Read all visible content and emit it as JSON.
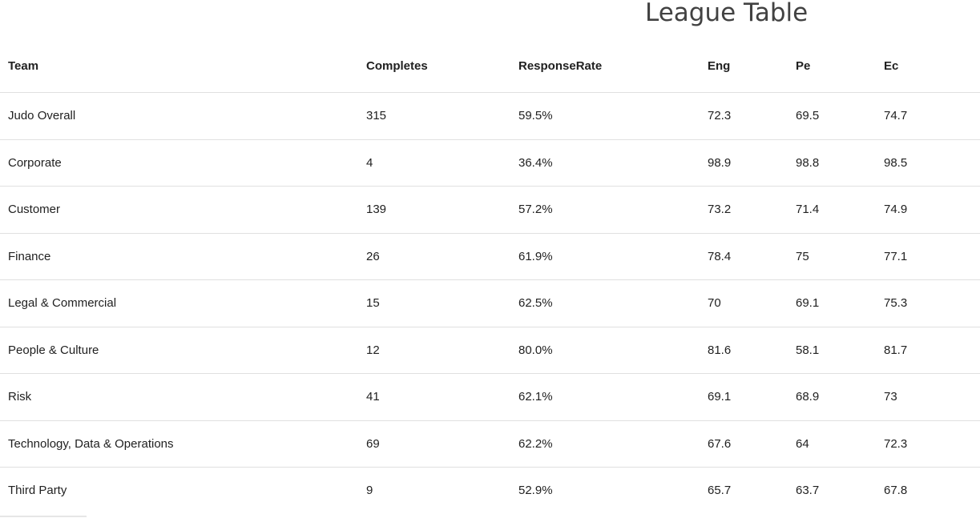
{
  "page": {
    "title": "League Table"
  },
  "table": {
    "headers": [
      "Team",
      "Completes",
      "ResponseRate",
      "Eng",
      "Pe",
      "Ec"
    ],
    "rows": [
      [
        "Judo Overall",
        "315",
        "59.5%",
        "72.3",
        "69.5",
        "74.7"
      ],
      [
        "Corporate",
        "4",
        "36.4%",
        "98.9",
        "98.8",
        "98.5"
      ],
      [
        "Customer",
        "139",
        "57.2%",
        "73.2",
        "71.4",
        "74.9"
      ],
      [
        "Finance",
        "26",
        "61.9%",
        "78.4",
        "75",
        "77.1"
      ],
      [
        "Legal & Commercial",
        "15",
        "62.5%",
        "70",
        "69.1",
        "75.3"
      ],
      [
        "People & Culture",
        "12",
        "80.0%",
        "81.6",
        "58.1",
        "81.7"
      ],
      [
        "Risk",
        "41",
        "62.1%",
        "69.1",
        "68.9",
        "73"
      ],
      [
        "Technology, Data & Operations",
        "69",
        "62.2%",
        "67.6",
        "64",
        "72.3"
      ],
      [
        "Third Party",
        "9",
        "52.9%",
        "65.7",
        "63.7",
        "67.8"
      ]
    ]
  }
}
